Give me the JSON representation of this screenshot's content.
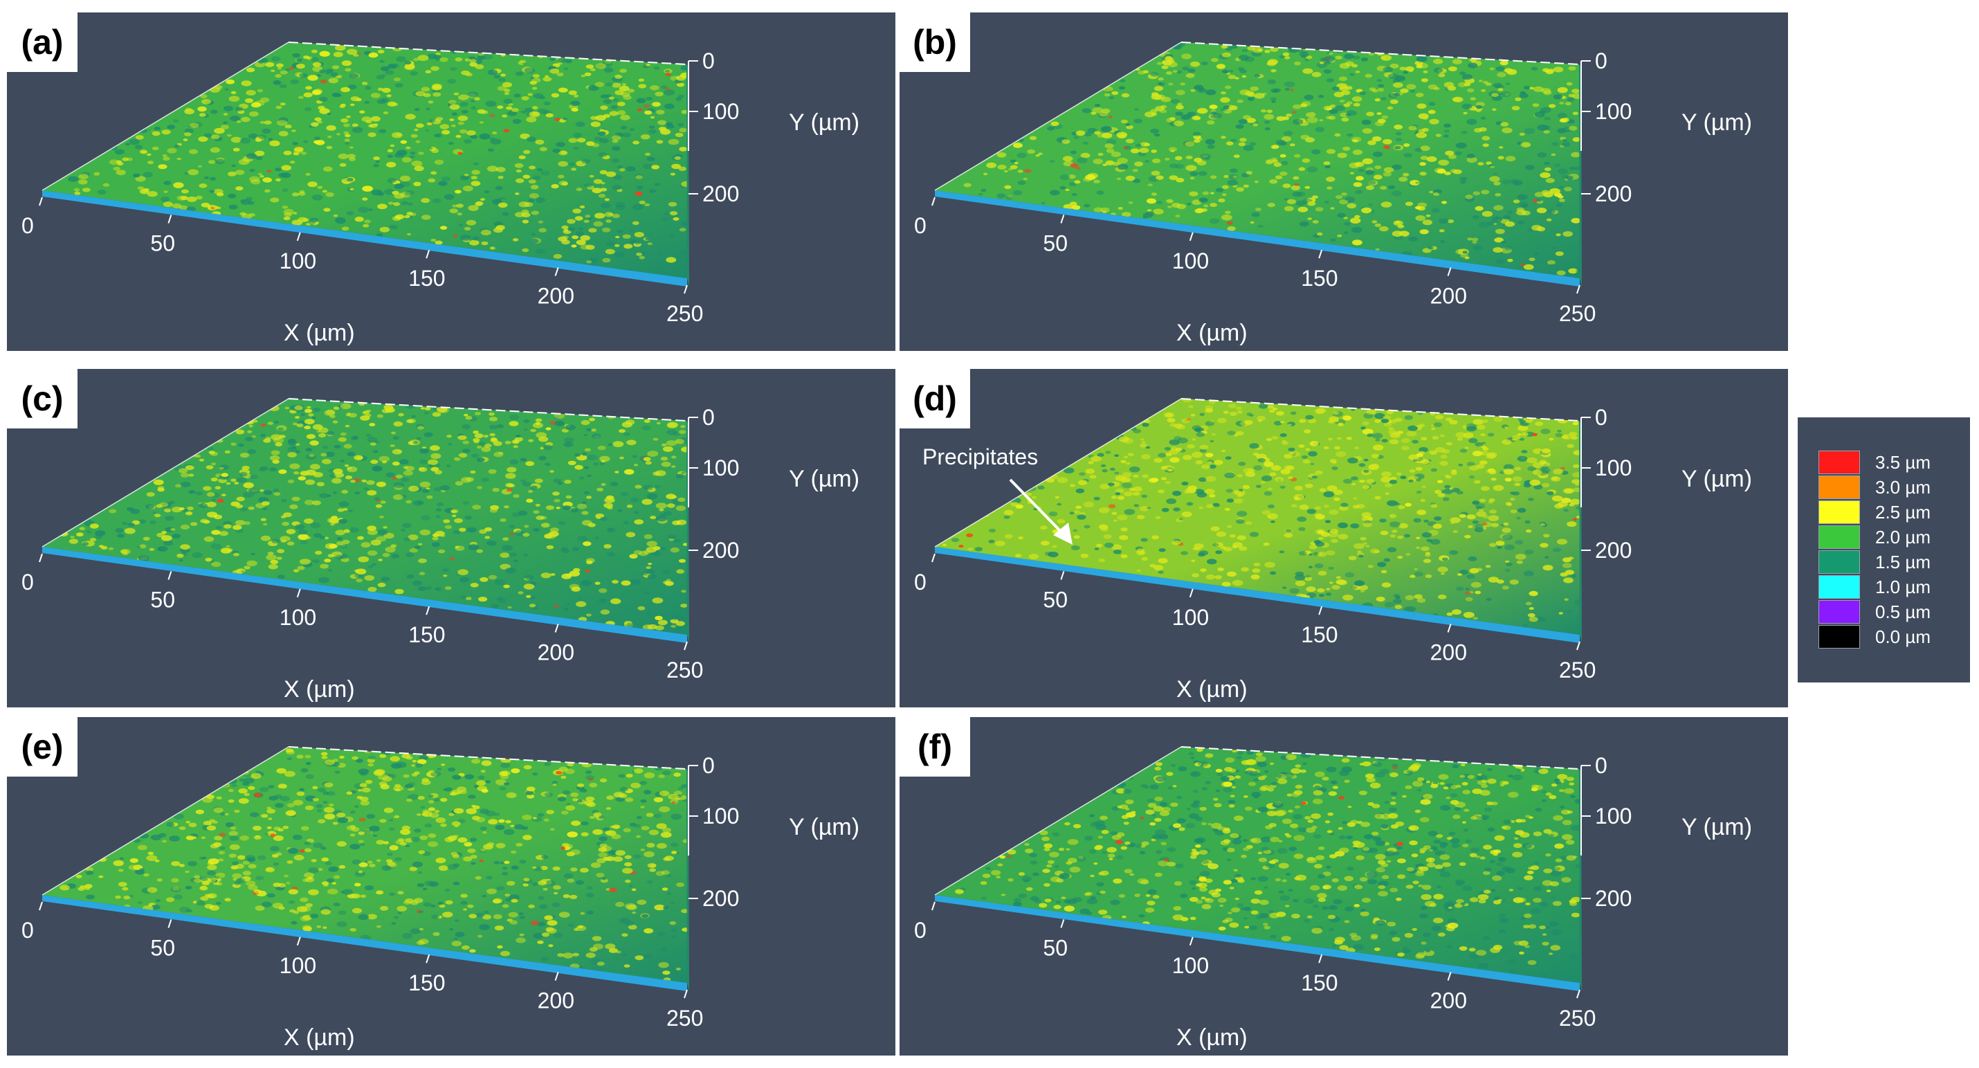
{
  "chart_data": [
    {
      "type": "heatmap",
      "panel_label": "(a)",
      "xlabel": "X (µm)",
      "ylabel": "Y (µm)",
      "xticks": [
        "0",
        "50",
        "100",
        "150",
        "200",
        "250"
      ],
      "yticks": [
        "0",
        "100",
        "200"
      ],
      "xlim": [
        0,
        250
      ],
      "ylim": [
        0,
        250
      ],
      "base_color": "#3fb24a"
    },
    {
      "type": "heatmap",
      "panel_label": "(b)",
      "xlabel": "X (µm)",
      "ylabel": "Y (µm)",
      "xticks": [
        "0",
        "50",
        "100",
        "150",
        "200",
        "250"
      ],
      "yticks": [
        "0",
        "100",
        "200"
      ],
      "xlim": [
        0,
        250
      ],
      "ylim": [
        0,
        250
      ],
      "base_color": "#45b54a"
    },
    {
      "type": "heatmap",
      "panel_label": "(c)",
      "xlabel": "X (µm)",
      "ylabel": "Y (µm)",
      "xticks": [
        "0",
        "50",
        "100",
        "150",
        "200",
        "250"
      ],
      "yticks": [
        "0",
        "100",
        "200"
      ],
      "xlim": [
        0,
        250
      ],
      "ylim": [
        0,
        250
      ],
      "base_color": "#3aaa52"
    },
    {
      "type": "heatmap",
      "panel_label": "(d)",
      "xlabel": "X (µm)",
      "ylabel": "Y (µm)",
      "xticks": [
        "0",
        "50",
        "100",
        "150",
        "200",
        "250"
      ],
      "yticks": [
        "0",
        "100",
        "200"
      ],
      "xlim": [
        0,
        250
      ],
      "ylim": [
        0,
        250
      ],
      "base_color": "#8ccc2e",
      "annotation": "Precipitates"
    },
    {
      "type": "heatmap",
      "panel_label": "(e)",
      "xlabel": "X (µm)",
      "ylabel": "Y (µm)",
      "xticks": [
        "0",
        "50",
        "100",
        "150",
        "200",
        "250"
      ],
      "yticks": [
        "0",
        "100",
        "200"
      ],
      "xlim": [
        0,
        250
      ],
      "ylim": [
        0,
        250
      ],
      "base_color": "#48b548"
    },
    {
      "type": "heatmap",
      "panel_label": "(f)",
      "xlabel": "X (µm)",
      "ylabel": "Y (µm)",
      "xticks": [
        "0",
        "50",
        "100",
        "150",
        "200",
        "250"
      ],
      "yticks": [
        "0",
        "100",
        "200"
      ],
      "xlim": [
        0,
        250
      ],
      "ylim": [
        0,
        250
      ],
      "base_color": "#3aab4e"
    }
  ],
  "legend": {
    "items": [
      {
        "label": "3.5 µm",
        "color": "#ff1a1a"
      },
      {
        "label": "3.0 µm",
        "color": "#ff8a00"
      },
      {
        "label": "2.5 µm",
        "color": "#ffff1a"
      },
      {
        "label": "2.0 µm",
        "color": "#3cc83c"
      },
      {
        "label": "1.5 µm",
        "color": "#149a6e"
      },
      {
        "label": "1.0 µm",
        "color": "#1affff"
      },
      {
        "label": "0.5 µm",
        "color": "#8a1aff"
      },
      {
        "label": "0.0 µm",
        "color": "#000000"
      }
    ]
  },
  "colors": {
    "panel_bg": "#3f4a5c",
    "high": "#d8e61c",
    "peak": "#ff3a1a",
    "low": "#1f8c6a",
    "edge": "#2aa7e0"
  }
}
